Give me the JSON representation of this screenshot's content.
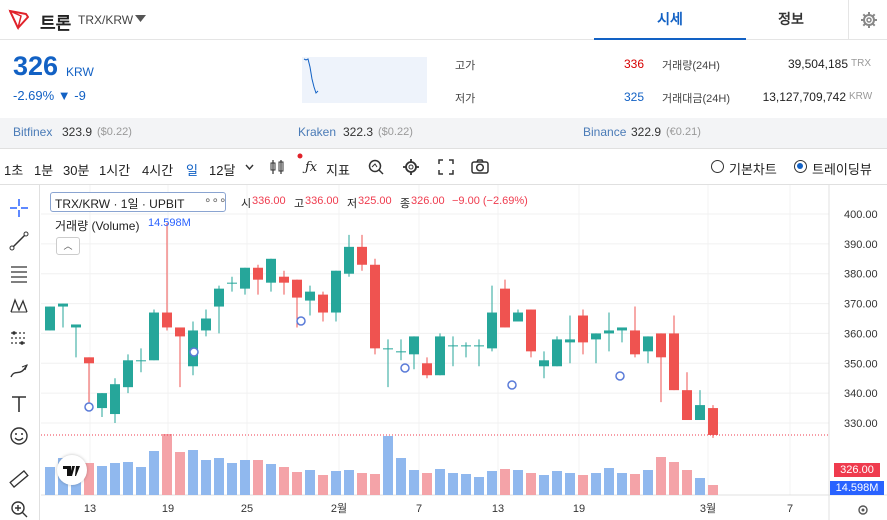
{
  "header": {
    "coin_name": "트론",
    "coin_code": "TRX/KRW",
    "tabs": [
      {
        "label": "시세",
        "active": true
      },
      {
        "label": "정보",
        "active": false
      }
    ]
  },
  "summary": {
    "price": "326",
    "unit": "KRW",
    "change": "-2.69% ▼ -9",
    "stats": [
      {
        "label": "고가",
        "value": "336",
        "color": "#d60000"
      },
      {
        "label": "저가",
        "value": "325",
        "color": "#1261c4"
      }
    ],
    "stats2": [
      {
        "label": "거래량(24H)",
        "value": "39,504,185",
        "unit": "TRX"
      },
      {
        "label": "거래대금(24H)",
        "value": "13,127,709,742",
        "unit": "KRW"
      }
    ]
  },
  "exchanges": [
    {
      "name": "Bitfinex",
      "value": "323.9",
      "sub": "($0.22)"
    },
    {
      "name": "Kraken",
      "value": "322.3",
      "sub": "($0.22)"
    },
    {
      "name": "Binance",
      "value": "322.9",
      "sub": "(€0.21)"
    }
  ],
  "toolbar": {
    "intervals": [
      "1초",
      "1분",
      "30분",
      "1시간",
      "4시간",
      "일",
      "12달"
    ],
    "active_interval": "일",
    "indicator_label": "지표",
    "radio_basic": "기본차트",
    "radio_trading": "트레이딩뷰"
  },
  "left_tools": [
    "crosshair-icon",
    "trend-line-icon",
    "fib-icon",
    "pattern-icon",
    "forecast-icon",
    "brush-icon",
    "text-icon",
    "emoji-icon",
    "ruler-icon",
    "zoom-in-icon"
  ],
  "legend": {
    "symbol": "TRX/KRW · 1일 · UPBIT",
    "dots": "∘∘∘",
    "o_label": "시",
    "o_value": "336.00",
    "h_label": "고",
    "h_value": "336.00",
    "l_label": "저",
    "l_value": "325.00",
    "c_label": "종",
    "c_value": "326.00",
    "chg": "−9.00 (−2.69%)",
    "volume_title": "거래량 (Volume)",
    "volume_value": "14.598M"
  },
  "price_tag": "326.00",
  "volume_tag": "14.598M",
  "colors": {
    "up": "#26a69a",
    "down": "#ef5350",
    "accent": "#1261c4"
  },
  "chart_data": {
    "type": "candlestick",
    "y_ticks": [
      "400.00",
      "390.00",
      "380.00",
      "370.00",
      "360.00",
      "350.00",
      "340.00",
      "330.00"
    ],
    "x_ticks": [
      "13",
      "19",
      "25",
      "2월",
      "7",
      "13",
      "19",
      "3월",
      "7"
    ],
    "ylim": [
      320,
      400
    ],
    "candles": [
      [
        361,
        369,
        369,
        363,
        0.28
      ],
      [
        369,
        370,
        359,
        362,
        0.37
      ],
      [
        362,
        363,
        351,
        352,
        0.3
      ],
      [
        352,
        350,
        342,
        335,
        0.32
      ],
      [
        335,
        340,
        331,
        332,
        0.29
      ],
      [
        333,
        343,
        345,
        330,
        0.32
      ],
      [
        342,
        351,
        353,
        340,
        0.33
      ],
      [
        351,
        351,
        355,
        347,
        0.28
      ],
      [
        351,
        367,
        368,
        351,
        0.44
      ],
      [
        367,
        362,
        397,
        361,
        0.61
      ],
      [
        362,
        359,
        362,
        342,
        0.43
      ],
      [
        349,
        361,
        364,
        346,
        0.45
      ],
      [
        361,
        365,
        368,
        359,
        0.35
      ],
      [
        369,
        375,
        376,
        360,
        0.37
      ],
      [
        377,
        377,
        379,
        374,
        0.32
      ],
      [
        375,
        382,
        382,
        373,
        0.35
      ],
      [
        382,
        378,
        383,
        373,
        0.35
      ],
      [
        377,
        385,
        384,
        374,
        0.31
      ],
      [
        379,
        377,
        381,
        373,
        0.28
      ],
      [
        378,
        372,
        374,
        362,
        0.23
      ],
      [
        371,
        374,
        376,
        366,
        0.25
      ],
      [
        373,
        367,
        374,
        364,
        0.2
      ],
      [
        367,
        381,
        381,
        364,
        0.24
      ],
      [
        380,
        389,
        393,
        379,
        0.25
      ],
      [
        389,
        383,
        393,
        381,
        0.22
      ],
      [
        383,
        355,
        385,
        353,
        0.21
      ],
      [
        355,
        355,
        358,
        342,
        0.59
      ],
      [
        354,
        354,
        358,
        351,
        0.37
      ],
      [
        353,
        359,
        352,
        348,
        0.25
      ],
      [
        350,
        346,
        352,
        345,
        0.22
      ],
      [
        346,
        359,
        360,
        347,
        0.26
      ],
      [
        356,
        356,
        359,
        349,
        0.22
      ],
      [
        356,
        356,
        357,
        352,
        0.21
      ],
      [
        356,
        356,
        358,
        349,
        0.18
      ],
      [
        355,
        367,
        376,
        354,
        0.24
      ],
      [
        375,
        362,
        378,
        364,
        0.26
      ],
      [
        364,
        367,
        368,
        364,
        0.25
      ],
      [
        368,
        354,
        367,
        352,
        0.22
      ],
      [
        349,
        351,
        354,
        345,
        0.2
      ],
      [
        349,
        358,
        359,
        349,
        0.24
      ],
      [
        357,
        358,
        366,
        350,
        0.22
      ],
      [
        366,
        357,
        368,
        353,
        0.2
      ],
      [
        358,
        360,
        359,
        350,
        0.22
      ],
      [
        360,
        361,
        367,
        354,
        0.27
      ],
      [
        361,
        362,
        362,
        357,
        0.22
      ],
      [
        361,
        353,
        369,
        352,
        0.21
      ],
      [
        354,
        359,
        355,
        350,
        0.25
      ],
      [
        360,
        352,
        358,
        337,
        0.38
      ],
      [
        360,
        341,
        366,
        342,
        0.33
      ],
      [
        341,
        331,
        347,
        332,
        0.25
      ],
      [
        331,
        336,
        341,
        332,
        0.17
      ],
      [
        335,
        326,
        336,
        325,
        0.1
      ]
    ]
  }
}
